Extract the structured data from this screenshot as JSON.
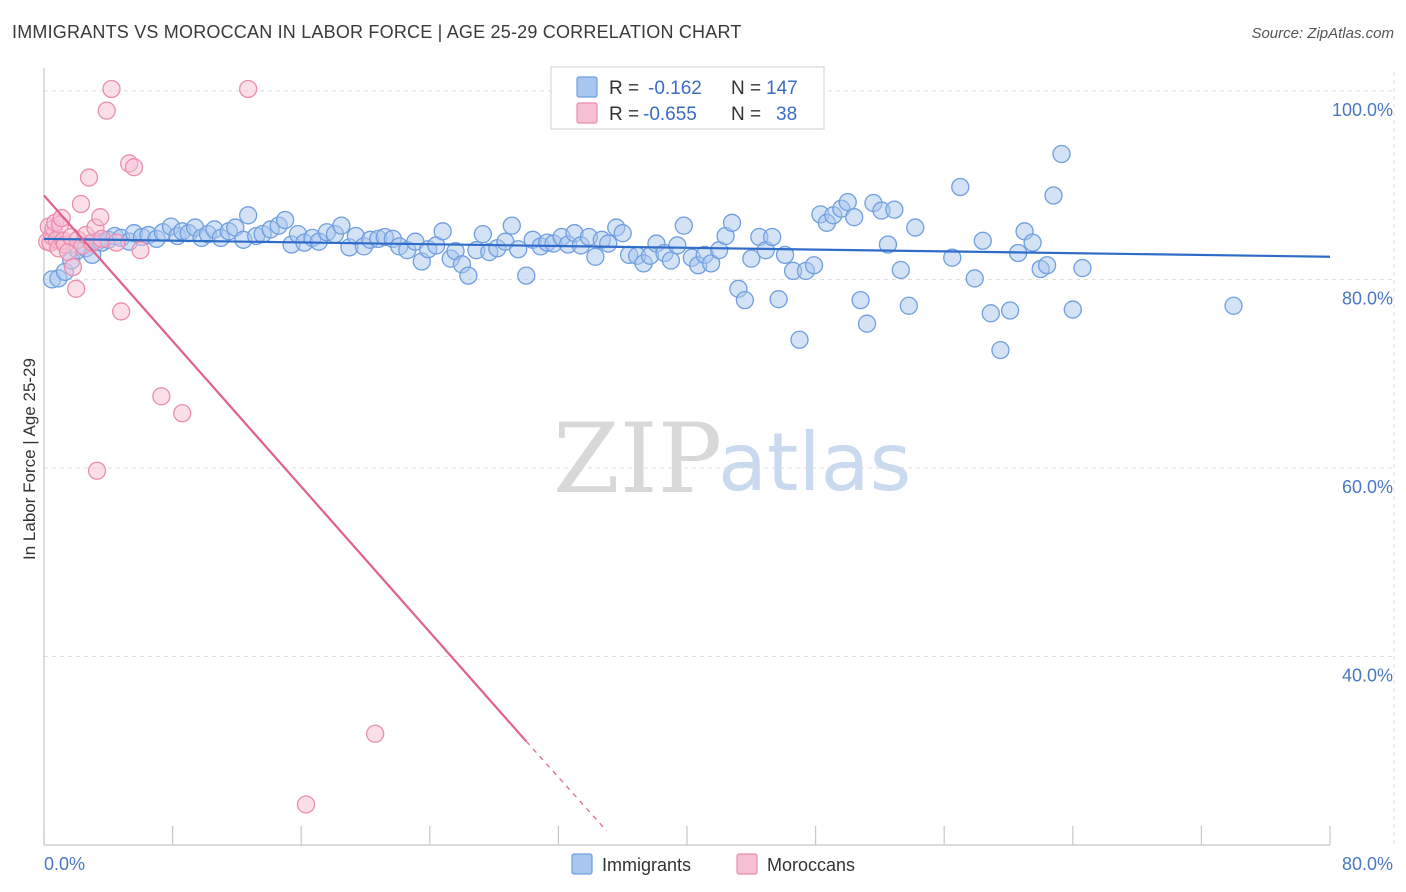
{
  "chart_data": {
    "type": "scatter",
    "title": "IMMIGRANTS VS MOROCCAN IN LABOR FORCE | AGE 25-29 CORRELATION CHART",
    "source": "Source: ZipAtlas.com",
    "ylabel": "In Labor Force | Age 25-29",
    "xlabel": "",
    "xlim": [
      0,
      80
    ],
    "ylim": [
      20,
      102
    ],
    "y_ticks": [
      {
        "value": 100,
        "label": "100.0%"
      },
      {
        "value": 80,
        "label": "80.0%"
      },
      {
        "value": 60,
        "label": "60.0%"
      },
      {
        "value": 40,
        "label": "40.0%"
      }
    ],
    "x_tick_labels": {
      "left": "0.0%",
      "right": "80.0%"
    },
    "x_minor_ticks": [
      0,
      8,
      16,
      24,
      32,
      40,
      48,
      56,
      64,
      72,
      80
    ],
    "watermark": {
      "zip": "ZIP",
      "atlas": "atlas"
    },
    "stats_legend": [
      {
        "series": "Immigrants",
        "r_label": "R =",
        "r_value": "-0.162",
        "n_label": "N =",
        "n_value": "147"
      },
      {
        "series": "Moroccans",
        "r_label": "R =",
        "r_value": "-0.655",
        "n_label": "N =",
        "n_value": "38"
      }
    ],
    "series": [
      {
        "name": "Immigrants",
        "color": "#6f9fe0",
        "fill": "#a9c6ee",
        "line_color": "#2f6cc8",
        "trend": {
          "x": [
            0,
            80
          ],
          "y": [
            84.3,
            82.4
          ]
        },
        "points": [
          [
            0.5,
            80.0
          ],
          [
            0.9,
            80.1
          ],
          [
            1.3,
            80.8
          ],
          [
            1.7,
            82.0
          ],
          [
            2.1,
            83.1
          ],
          [
            2.6,
            83.3
          ],
          [
            3.0,
            82.6
          ],
          [
            3.3,
            84.0
          ],
          [
            3.6,
            83.9
          ],
          [
            4.0,
            84.2
          ],
          [
            4.4,
            84.6
          ],
          [
            4.8,
            84.4
          ],
          [
            5.3,
            84.0
          ],
          [
            5.6,
            84.9
          ],
          [
            6.1,
            84.5
          ],
          [
            6.5,
            84.7
          ],
          [
            7.0,
            84.3
          ],
          [
            7.4,
            85.0
          ],
          [
            7.9,
            85.6
          ],
          [
            8.3,
            84.6
          ],
          [
            8.6,
            85.1
          ],
          [
            9.0,
            84.9
          ],
          [
            9.4,
            85.5
          ],
          [
            9.8,
            84.4
          ],
          [
            10.2,
            84.8
          ],
          [
            10.6,
            85.3
          ],
          [
            11.0,
            84.4
          ],
          [
            11.5,
            85.1
          ],
          [
            11.9,
            85.5
          ],
          [
            12.4,
            84.2
          ],
          [
            12.7,
            86.8
          ],
          [
            13.2,
            84.6
          ],
          [
            13.6,
            84.8
          ],
          [
            14.1,
            85.3
          ],
          [
            14.6,
            85.7
          ],
          [
            15.0,
            86.3
          ],
          [
            15.4,
            83.7
          ],
          [
            15.8,
            84.8
          ],
          [
            16.2,
            83.9
          ],
          [
            16.7,
            84.4
          ],
          [
            17.1,
            84.0
          ],
          [
            17.6,
            85.0
          ],
          [
            18.1,
            84.8
          ],
          [
            18.5,
            85.7
          ],
          [
            19.0,
            83.4
          ],
          [
            19.4,
            84.6
          ],
          [
            19.9,
            83.5
          ],
          [
            20.3,
            84.2
          ],
          [
            20.8,
            84.3
          ],
          [
            21.2,
            84.5
          ],
          [
            21.7,
            84.3
          ],
          [
            22.1,
            83.5
          ],
          [
            22.6,
            83.1
          ],
          [
            23.1,
            84.0
          ],
          [
            23.5,
            81.9
          ],
          [
            23.9,
            83.2
          ],
          [
            24.4,
            83.6
          ],
          [
            24.8,
            85.1
          ],
          [
            25.3,
            82.2
          ],
          [
            25.6,
            83.0
          ],
          [
            26.0,
            81.6
          ],
          [
            26.4,
            80.4
          ],
          [
            26.9,
            83.1
          ],
          [
            27.3,
            84.8
          ],
          [
            27.7,
            82.9
          ],
          [
            28.2,
            83.3
          ],
          [
            28.7,
            84.0
          ],
          [
            29.1,
            85.7
          ],
          [
            29.5,
            83.2
          ],
          [
            30.0,
            80.4
          ],
          [
            30.4,
            84.2
          ],
          [
            30.9,
            83.5
          ],
          [
            31.3,
            83.9
          ],
          [
            31.7,
            83.8
          ],
          [
            32.2,
            84.5
          ],
          [
            32.6,
            83.7
          ],
          [
            33.0,
            84.9
          ],
          [
            33.4,
            83.6
          ],
          [
            33.9,
            84.5
          ],
          [
            34.3,
            82.4
          ],
          [
            34.7,
            84.2
          ],
          [
            35.1,
            83.8
          ],
          [
            35.6,
            85.5
          ],
          [
            36.0,
            84.9
          ],
          [
            36.4,
            82.6
          ],
          [
            36.9,
            82.5
          ],
          [
            37.3,
            81.7
          ],
          [
            37.7,
            82.5
          ],
          [
            38.1,
            83.8
          ],
          [
            38.6,
            82.8
          ],
          [
            39.0,
            82.0
          ],
          [
            39.4,
            83.6
          ],
          [
            39.8,
            85.7
          ],
          [
            40.3,
            82.3
          ],
          [
            40.7,
            81.5
          ],
          [
            41.1,
            82.6
          ],
          [
            41.5,
            81.7
          ],
          [
            42.0,
            83.1
          ],
          [
            42.4,
            84.6
          ],
          [
            42.8,
            86.0
          ],
          [
            43.2,
            79.0
          ],
          [
            43.6,
            77.8
          ],
          [
            44.0,
            82.2
          ],
          [
            44.5,
            84.5
          ],
          [
            44.9,
            83.1
          ],
          [
            45.3,
            84.5
          ],
          [
            45.7,
            77.9
          ],
          [
            46.1,
            82.6
          ],
          [
            46.6,
            80.9
          ],
          [
            47.0,
            73.6
          ],
          [
            47.4,
            80.9
          ],
          [
            47.9,
            81.5
          ],
          [
            48.3,
            86.9
          ],
          [
            48.7,
            86.0
          ],
          [
            49.1,
            86.8
          ],
          [
            49.6,
            87.5
          ],
          [
            50.0,
            88.2
          ],
          [
            50.4,
            86.6
          ],
          [
            50.8,
            77.8
          ],
          [
            51.2,
            75.3
          ],
          [
            51.6,
            88.1
          ],
          [
            52.1,
            87.3
          ],
          [
            52.5,
            83.7
          ],
          [
            52.9,
            87.4
          ],
          [
            53.3,
            81.0
          ],
          [
            53.8,
            77.2
          ],
          [
            54.2,
            85.5
          ],
          [
            56.5,
            82.3
          ],
          [
            57.0,
            89.8
          ],
          [
            57.9,
            80.1
          ],
          [
            58.4,
            84.1
          ],
          [
            58.9,
            76.4
          ],
          [
            59.5,
            72.5
          ],
          [
            60.1,
            76.7
          ],
          [
            60.6,
            82.8
          ],
          [
            61.0,
            85.1
          ],
          [
            61.5,
            83.9
          ],
          [
            62.0,
            81.1
          ],
          [
            62.4,
            81.5
          ],
          [
            62.8,
            88.9
          ],
          [
            63.3,
            93.3
          ],
          [
            64.0,
            76.8
          ],
          [
            64.6,
            81.2
          ],
          [
            74.0,
            77.2
          ]
        ]
      },
      {
        "name": "Moroccans",
        "color": "#ec8db0",
        "fill": "#f6bfd3",
        "line_color": "#e0608e",
        "trend": {
          "x": [
            0,
            30
          ],
          "y": [
            88.9,
            31.0
          ]
        },
        "trend_dashed": {
          "x": [
            30,
            35
          ],
          "y": [
            31.0,
            21.5
          ]
        },
        "points": [
          [
            0.2,
            84.0
          ],
          [
            0.3,
            85.6
          ],
          [
            0.4,
            83.9
          ],
          [
            0.5,
            84.6
          ],
          [
            0.6,
            85.4
          ],
          [
            0.7,
            86.0
          ],
          [
            0.8,
            84.2
          ],
          [
            0.9,
            83.3
          ],
          [
            1.0,
            85.8
          ],
          [
            1.1,
            86.5
          ],
          [
            1.2,
            84.1
          ],
          [
            1.3,
            83.7
          ],
          [
            1.5,
            82.9
          ],
          [
            1.7,
            84.5
          ],
          [
            1.8,
            81.3
          ],
          [
            2.0,
            79.0
          ],
          [
            2.1,
            84.2
          ],
          [
            2.3,
            88.0
          ],
          [
            2.4,
            83.6
          ],
          [
            2.6,
            84.7
          ],
          [
            2.8,
            90.8
          ],
          [
            3.0,
            83.9
          ],
          [
            3.2,
            85.5
          ],
          [
            3.3,
            59.7
          ],
          [
            3.5,
            86.6
          ],
          [
            3.6,
            84.3
          ],
          [
            3.9,
            97.9
          ],
          [
            4.2,
            100.2
          ],
          [
            4.5,
            83.9
          ],
          [
            4.8,
            76.6
          ],
          [
            5.3,
            92.3
          ],
          [
            5.6,
            91.9
          ],
          [
            6.0,
            83.1
          ],
          [
            7.3,
            67.6
          ],
          [
            8.6,
            65.8
          ],
          [
            12.7,
            100.2
          ],
          [
            16.3,
            24.3
          ],
          [
            20.6,
            31.8
          ]
        ]
      }
    ],
    "bottom_legend": [
      {
        "label": "Immigrants"
      },
      {
        "label": "Moroccans"
      }
    ]
  }
}
